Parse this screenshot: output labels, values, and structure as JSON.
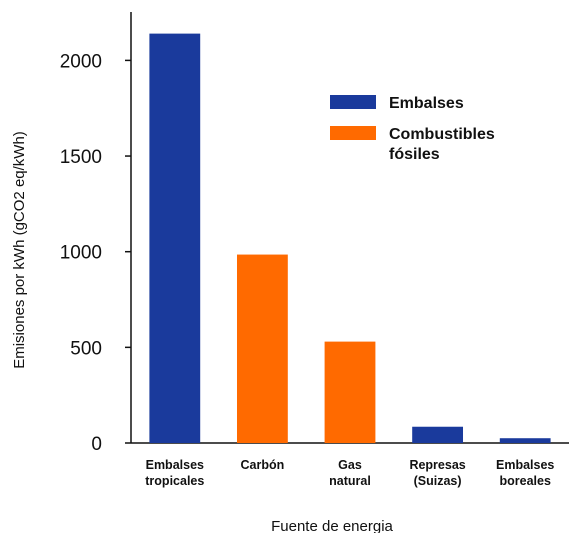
{
  "chart_data": {
    "type": "bar",
    "categories": [
      [
        "Embalses",
        "tropicales"
      ],
      [
        "Carbón"
      ],
      [
        "Gas",
        "natural"
      ],
      [
        "Represas",
        "(Suizas)"
      ],
      [
        "Embalses",
        "boreales"
      ]
    ],
    "values": [
      2140,
      985,
      530,
      85,
      25
    ],
    "bar_series": [
      "Embalses",
      "Combustibles fósiles",
      "Combustibles fósiles",
      "Embalses",
      "Embalses"
    ],
    "series": [
      {
        "name": "Embalses",
        "color": "#1a3a9c"
      },
      {
        "name": [
          "Combustibles",
          "fósiles"
        ],
        "color": "#ff6a00"
      }
    ],
    "title": "",
    "xlabel": "Fuente de energia",
    "ylabel": "Emisiones por kWh (gCO2 eq/kWh)",
    "yticks": [
      0,
      500,
      1000,
      1500,
      2000
    ],
    "ylim": [
      0,
      2300
    ],
    "grid": false,
    "legend_position": "top-right"
  }
}
